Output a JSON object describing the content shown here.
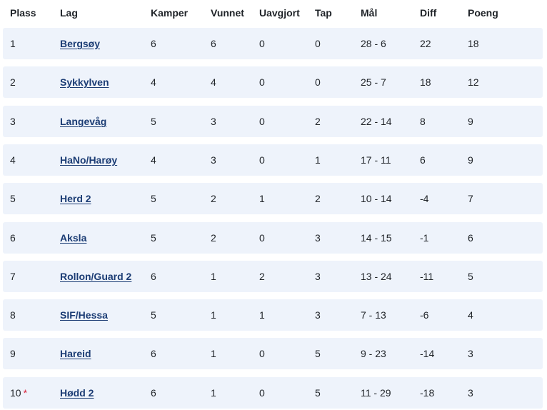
{
  "headers": {
    "plass": "Plass",
    "lag": "Lag",
    "kamper": "Kamper",
    "vunnet": "Vunnet",
    "uavgjort": "Uavgjort",
    "tap": "Tap",
    "mal": "Mål",
    "diff": "Diff",
    "poeng": "Poeng"
  },
  "rows": [
    {
      "plass": "1",
      "lag": "Bergsøy",
      "kamper": "6",
      "vunnet": "6",
      "uavgjort": "0",
      "tap": "0",
      "mal": "28 - 6",
      "diff": "22",
      "poeng": "18",
      "star": ""
    },
    {
      "plass": "2",
      "lag": "Sykkylven",
      "kamper": "4",
      "vunnet": "4",
      "uavgjort": "0",
      "tap": "0",
      "mal": "25 - 7",
      "diff": "18",
      "poeng": "12",
      "star": ""
    },
    {
      "plass": "3",
      "lag": "Langevåg",
      "kamper": "5",
      "vunnet": "3",
      "uavgjort": "0",
      "tap": "2",
      "mal": "22 - 14",
      "diff": "8",
      "poeng": "9",
      "star": ""
    },
    {
      "plass": "4",
      "lag": "HaNo/Harøy",
      "kamper": "4",
      "vunnet": "3",
      "uavgjort": "0",
      "tap": "1",
      "mal": "17 - 11",
      "diff": "6",
      "poeng": "9",
      "star": ""
    },
    {
      "plass": "5",
      "lag": "Herd 2",
      "kamper": "5",
      "vunnet": "2",
      "uavgjort": "1",
      "tap": "2",
      "mal": "10 - 14",
      "diff": "-4",
      "poeng": "7",
      "star": ""
    },
    {
      "plass": "6",
      "lag": "Aksla",
      "kamper": "5",
      "vunnet": "2",
      "uavgjort": "0",
      "tap": "3",
      "mal": "14 - 15",
      "diff": "-1",
      "poeng": "6",
      "star": ""
    },
    {
      "plass": "7",
      "lag": "Rollon/Guard 2",
      "kamper": "6",
      "vunnet": "1",
      "uavgjort": "2",
      "tap": "3",
      "mal": "13 - 24",
      "diff": "-11",
      "poeng": "5",
      "star": ""
    },
    {
      "plass": "8",
      "lag": "SIF/Hessa",
      "kamper": "5",
      "vunnet": "1",
      "uavgjort": "1",
      "tap": "3",
      "mal": "7 - 13",
      "diff": "-6",
      "poeng": "4",
      "star": ""
    },
    {
      "plass": "9",
      "lag": "Hareid",
      "kamper": "6",
      "vunnet": "1",
      "uavgjort": "0",
      "tap": "5",
      "mal": "9 - 23",
      "diff": "-14",
      "poeng": "3",
      "star": ""
    },
    {
      "plass": "10",
      "lag": "Hødd 2",
      "kamper": "6",
      "vunnet": "1",
      "uavgjort": "0",
      "tap": "5",
      "mal": "11 - 29",
      "diff": "-18",
      "poeng": "3",
      "star": "*"
    }
  ],
  "colors": {
    "row_background": "#eef3fb",
    "link": "#1b3c74",
    "star": "#d9233a"
  }
}
